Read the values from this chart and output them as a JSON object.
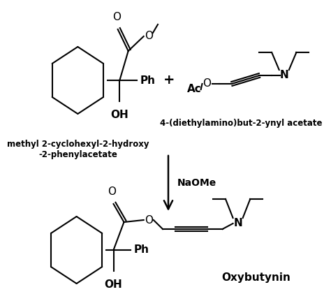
{
  "background_color": "#ffffff",
  "text_color": "#000000",
  "line_color": "#000000",
  "line_width": 1.5,
  "reagent_text": "NaOMe",
  "plus_text": "+",
  "product_label": "Oxybutynin",
  "reactant1_label": "methyl 2-cyclohexyl-2-hydroxy\n-2-phenylacetate",
  "reactant2_label": "4-(diethylamino)but-2-ynyl acetate"
}
